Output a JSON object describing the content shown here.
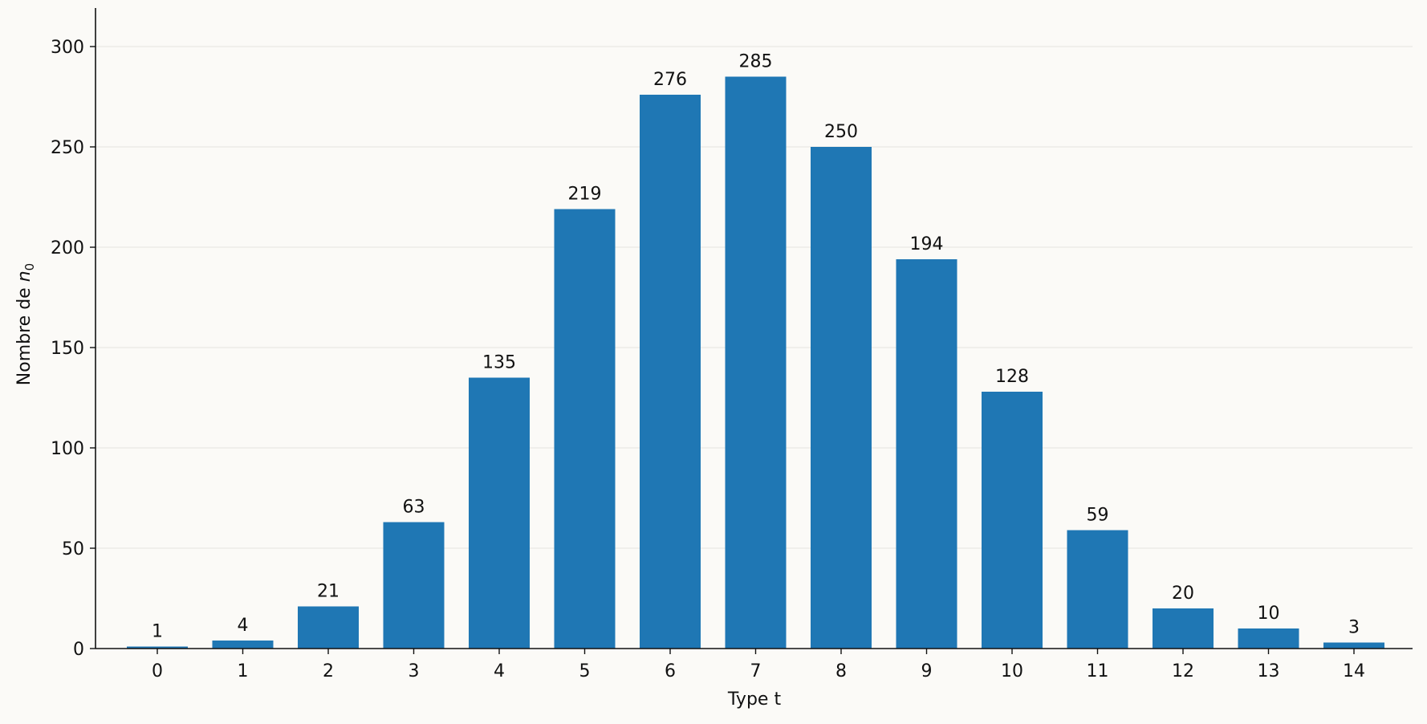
{
  "chart_data": {
    "type": "bar",
    "categories": [
      "0",
      "1",
      "2",
      "3",
      "4",
      "5",
      "6",
      "7",
      "8",
      "9",
      "10",
      "11",
      "12",
      "13",
      "14"
    ],
    "values": [
      1,
      4,
      21,
      63,
      135,
      219,
      276,
      285,
      250,
      194,
      128,
      59,
      20,
      10,
      3
    ],
    "data_labels": [
      "1",
      "4",
      "21",
      "63",
      "135",
      "219",
      "276",
      "285",
      "250",
      "194",
      "128",
      "59",
      "20",
      "10",
      "3"
    ],
    "title": "",
    "xlabel": "Type t",
    "ylabel_text": "Nombre de ",
    "ylabel_var": "n",
    "ylabel_sub": "0",
    "ylim": [
      0,
      320
    ],
    "yticks": [
      0,
      50,
      100,
      150,
      200,
      250,
      300
    ],
    "grid": "horizontal",
    "bar_color": "#1f77b4"
  }
}
